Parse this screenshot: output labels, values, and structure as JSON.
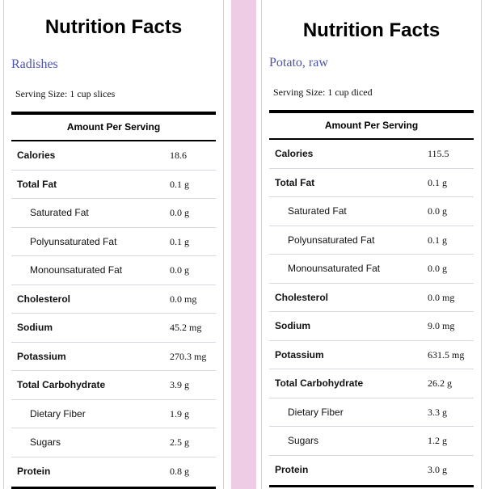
{
  "panels": [
    {
      "title": "Nutrition Facts",
      "food": "Radishes",
      "serving": "Serving Size: 1 cup slices",
      "amount_per_serving": "Amount Per Serving",
      "rows": [
        {
          "label": "Calories",
          "value": "18.6",
          "bold": true,
          "indent": false
        },
        {
          "label": "Total Fat",
          "value": "0.1 g",
          "bold": true,
          "indent": false
        },
        {
          "label": "Saturated Fat",
          "value": "0.0 g",
          "bold": false,
          "indent": true
        },
        {
          "label": "Polyunsaturated Fat",
          "value": "0.1 g",
          "bold": false,
          "indent": true
        },
        {
          "label": "Monounsaturated Fat",
          "value": "0.0 g",
          "bold": false,
          "indent": true
        },
        {
          "label": "Cholesterol",
          "value": "0.0 mg",
          "bold": true,
          "indent": false
        },
        {
          "label": "Sodium",
          "value": "45.2 mg",
          "bold": true,
          "indent": false
        },
        {
          "label": "Potassium",
          "value": "270.3 mg",
          "bold": true,
          "indent": false
        },
        {
          "label": "Total Carbohydrate",
          "value": "3.9 g",
          "bold": true,
          "indent": false
        },
        {
          "label": "Dietary Fiber",
          "value": "1.9 g",
          "bold": false,
          "indent": true
        },
        {
          "label": "Sugars",
          "value": "2.5 g",
          "bold": false,
          "indent": true
        },
        {
          "label": "Protein",
          "value": "0.8 g",
          "bold": true,
          "indent": false
        }
      ]
    },
    {
      "title": "Nutrition Facts",
      "food": "Potato, raw",
      "serving": "Serving Size: 1 cup diced",
      "amount_per_serving": "Amount Per Serving",
      "rows": [
        {
          "label": "Calories",
          "value": "115.5",
          "bold": true,
          "indent": false
        },
        {
          "label": "Total Fat",
          "value": "0.1 g",
          "bold": true,
          "indent": false
        },
        {
          "label": "Saturated Fat",
          "value": "0.0 g",
          "bold": false,
          "indent": true
        },
        {
          "label": "Polyunsaturated Fat",
          "value": "0.1 g",
          "bold": false,
          "indent": true
        },
        {
          "label": "Monounsaturated Fat",
          "value": "0.0 g",
          "bold": false,
          "indent": true
        },
        {
          "label": "Cholesterol",
          "value": "0.0 mg",
          "bold": true,
          "indent": false
        },
        {
          "label": "Sodium",
          "value": "9.0 mg",
          "bold": true,
          "indent": false
        },
        {
          "label": "Potassium",
          "value": "631.5 mg",
          "bold": true,
          "indent": false
        },
        {
          "label": "Total Carbohydrate",
          "value": "26.2 g",
          "bold": true,
          "indent": false
        },
        {
          "label": "Dietary Fiber",
          "value": "3.3 g",
          "bold": false,
          "indent": true
        },
        {
          "label": "Sugars",
          "value": "1.2 g",
          "bold": false,
          "indent": true
        },
        {
          "label": "Protein",
          "value": "3.0 g",
          "bold": true,
          "indent": false
        }
      ]
    }
  ],
  "colors": {
    "food_name": "#4b54a8",
    "divider_band": "#efcce6",
    "row_rule": "#d7d7e6"
  }
}
